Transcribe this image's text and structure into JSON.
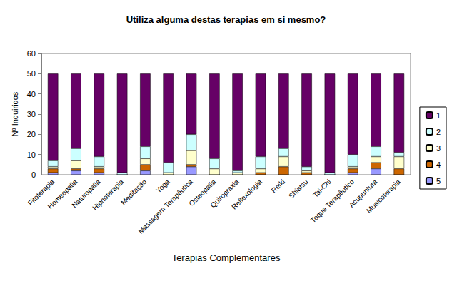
{
  "chart_data": {
    "type": "bar",
    "title": "Utiliza alguma destas terapias em si mesmo?",
    "x_label": "Terapias Complementares",
    "y_label": "Nº Inquiridos",
    "categories": [
      "Fitoterapia",
      "Homeopatia",
      "Naturopatia",
      "Hipnoterapia",
      "Meditação",
      "Yoga",
      "Massagem Terapêutica",
      "Osteopatia",
      "Quiropraxia",
      "Reflexologia",
      "Reiki",
      "Shiatsu",
      "Tai-Chi",
      "Toque Terapêutico",
      "Acupuntura",
      "Musicoterapia"
    ],
    "series": [
      {
        "name": "1",
        "color": "#660066",
        "values": [
          43,
          37,
          41,
          49,
          36,
          44,
          30,
          42,
          48,
          41,
          37,
          46,
          49,
          40,
          36,
          39
        ]
      },
      {
        "name": "2",
        "color": "#ccffff",
        "values": [
          3,
          6,
          5,
          1,
          6,
          5,
          8,
          5,
          1,
          6,
          4,
          2,
          1,
          6,
          5,
          2
        ]
      },
      {
        "name": "3",
        "color": "#ffffcc",
        "values": [
          1,
          4,
          1,
          0,
          3,
          1,
          7,
          3,
          1,
          2,
          5,
          1,
          0,
          1,
          3,
          6
        ]
      },
      {
        "name": "4",
        "color": "#cc6600",
        "values": [
          2,
          1,
          2,
          0,
          3,
          0,
          1,
          0,
          0,
          1,
          4,
          1,
          0,
          2,
          3,
          3
        ]
      },
      {
        "name": "5",
        "color": "#9999ff",
        "values": [
          1,
          2,
          1,
          0,
          2,
          0,
          4,
          0,
          0,
          0,
          0,
          0,
          0,
          1,
          3,
          0
        ]
      }
    ],
    "stacked": true,
    "ylim": [
      0,
      60
    ],
    "yticks": [
      0,
      10,
      20,
      30,
      40,
      50,
      60
    ],
    "grid": false,
    "legend": "right"
  }
}
